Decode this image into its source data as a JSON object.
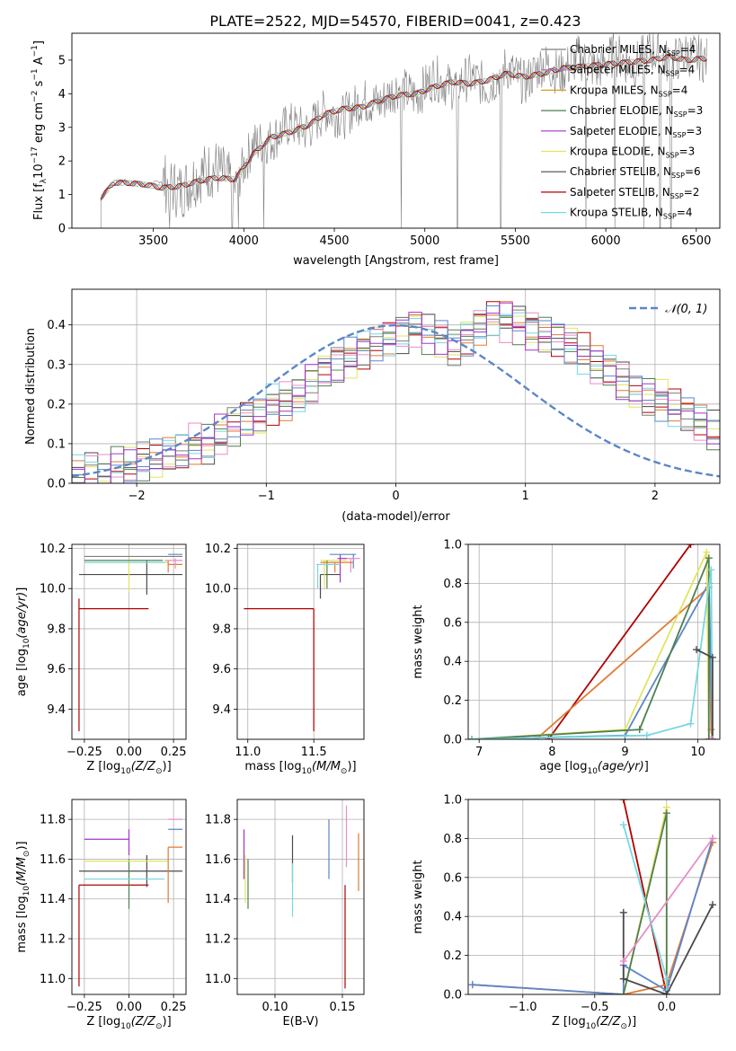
{
  "figure": {
    "title": "PLATE=2522, MJD=54570, FIBERID=0041, z=0.423"
  },
  "colors": {
    "ch_miles": "#7f7f7f",
    "sa_miles": "#9b7bc4",
    "kr_miles": "#d4a017",
    "ch_elodie": "#4f7f4f",
    "sa_elodie": "#a333c8",
    "kr_elodie": "#e3e360",
    "ch_stelib": "#4a4a4a",
    "sa_stelib": "#b00000",
    "kr_stelib": "#77d8e0",
    "orange": "#e07a33",
    "blue": "#5b86c9",
    "pink": "#e98cc6",
    "lime": "#c3d85e",
    "green": "#4f8f5f"
  },
  "chart_data": [
    {
      "id": "spectrum",
      "type": "line",
      "title": "PLATE=2522, MJD=54570, FIBERID=0041, z=0.423",
      "xlabel": "wavelength [Angstrom, rest frame]",
      "ylabel": "Flux [f",
      "xlim": [
        3050,
        6630
      ],
      "ylim": [
        0,
        5.8
      ],
      "xticks": [
        3500,
        4000,
        4500,
        5000,
        5500,
        6000,
        6500
      ],
      "yticks": [
        0,
        1,
        2,
        3,
        4,
        5
      ],
      "grid": false,
      "legend_position": "top-right",
      "legend": [
        {
          "label": "Chabrier MILES, N",
          "n": "4",
          "color_key": "ch_miles"
        },
        {
          "label": "Salpeter MILES, N",
          "n": "4",
          "color_key": "sa_miles"
        },
        {
          "label": "Kroupa MILES, N",
          "n": "4",
          "color_key": "kr_miles"
        },
        {
          "label": "Chabrier ELODIE, N",
          "n": "3",
          "color_key": "ch_elodie"
        },
        {
          "label": "Salpeter ELODIE, N",
          "n": "3",
          "color_key": "sa_elodie"
        },
        {
          "label": "Kroupa ELODIE, N",
          "n": "3",
          "color_key": "kr_elodie"
        },
        {
          "label": "Chabrier STELIB, N",
          "n": "6",
          "color_key": "ch_stelib"
        },
        {
          "label": "Salpeter STELIB, N",
          "n": "2",
          "color_key": "sa_stelib"
        },
        {
          "label": "Kroupa STELIB, N",
          "n": "4",
          "color_key": "kr_stelib"
        }
      ],
      "legend_suffix": "SSP",
      "continuum": {
        "x": [
          3210,
          3280,
          3350,
          3450,
          3550,
          3650,
          3750,
          3850,
          3950,
          4050,
          4150,
          4250,
          4350,
          4450,
          4550,
          4650,
          4750,
          4850,
          4950,
          5050,
          5150,
          5250,
          5350,
          5450,
          5550,
          5650,
          5750,
          5850,
          5950,
          6050,
          6150,
          6250,
          6350,
          6450,
          6550
        ],
        "y": [
          0.9,
          1.35,
          1.35,
          1.3,
          1.2,
          1.25,
          1.4,
          1.5,
          1.45,
          2.2,
          2.7,
          2.85,
          3.05,
          3.4,
          3.55,
          3.6,
          3.8,
          3.95,
          4.0,
          4.2,
          4.35,
          4.3,
          4.4,
          4.6,
          4.5,
          4.6,
          4.75,
          4.8,
          4.85,
          4.9,
          4.95,
          5.0,
          5.1,
          5.0,
          5.05
        ]
      },
      "observed": {
        "x": [
          3210,
          3280,
          3350,
          3450,
          3550,
          3650,
          3750,
          3850,
          3950,
          4050,
          4150,
          4250,
          4350,
          4450,
          4550,
          4650,
          4750,
          4850,
          4950,
          5050,
          5150,
          5250,
          5350,
          5450,
          5550,
          5650,
          5750,
          5850,
          5950,
          6050,
          6150,
          6250,
          6350,
          6450,
          6550
        ],
        "y": [
          0.9,
          1.4,
          1.4,
          1.3,
          1.4,
          1.1,
          1.6,
          1.8,
          1.2,
          2.5,
          2.6,
          3.1,
          2.9,
          3.5,
          3.3,
          3.8,
          3.7,
          4.2,
          3.9,
          4.5,
          4.2,
          4.5,
          4.2,
          4.8,
          4.3,
          4.9,
          4.6,
          5.1,
          4.7,
          5.2,
          4.8,
          5.3,
          4.9,
          5.2,
          5.0
        ],
        "dips": [
          3590,
          3935,
          3970,
          4110,
          4870,
          5180,
          5420,
          5890,
          6050,
          6210,
          6300,
          6360
        ]
      }
    },
    {
      "id": "residuals",
      "type": "line",
      "xlabel": "(data-model)/error",
      "ylabel": "Normed distribution",
      "xlim": [
        -2.5,
        2.5
      ],
      "ylim": [
        0,
        0.49
      ],
      "xticks": [
        -2,
        -1,
        0,
        1,
        2
      ],
      "yticks": [
        0.0,
        0.1,
        0.2,
        0.3,
        0.4
      ],
      "grid": true,
      "legend_position": "top-right",
      "legend_label": "𝒩(0, 1)",
      "gaussian": {
        "mu": 0,
        "sigma": 1
      },
      "bin_edges_start": -2.5,
      "bin_width": 0.1,
      "hist_base": [
        0.02,
        0.03,
        0.03,
        0.04,
        0.04,
        0.05,
        0.06,
        0.07,
        0.08,
        0.1,
        0.1,
        0.12,
        0.14,
        0.16,
        0.17,
        0.2,
        0.21,
        0.23,
        0.25,
        0.28,
        0.3,
        0.32,
        0.34,
        0.36,
        0.37,
        0.38,
        0.39,
        0.38,
        0.37,
        0.35,
        0.37,
        0.4,
        0.42,
        0.41,
        0.4,
        0.39,
        0.38,
        0.37,
        0.35,
        0.33,
        0.3,
        0.28,
        0.26,
        0.24,
        0.22,
        0.21,
        0.19,
        0.17,
        0.15,
        0.13
      ]
    },
    {
      "id": "age-vs-Z",
      "type": "scatter",
      "xlabel": "Z [log",
      "ylabel": "age  [log",
      "xlim": [
        -0.32,
        0.32
      ],
      "ylim": [
        9.25,
        10.22
      ],
      "xticks": [
        -0.25,
        0.0,
        0.25
      ],
      "xtick_labels": [
        "−0.25",
        "0.00",
        "0.25"
      ],
      "yticks": [
        9.4,
        9.6,
        9.8,
        10.0,
        10.2
      ],
      "grid": true,
      "points": [
        {
          "x": -0.28,
          "y": 9.9,
          "xl": -0.28,
          "xh": 0.11,
          "yl": 9.29,
          "yh": 9.95,
          "c": "sa_stelib"
        },
        {
          "x": -0.28,
          "y": 10.07,
          "xl": -0.28,
          "xh": 0.3,
          "yl": 10.07,
          "yh": 10.07,
          "c": "ch_stelib"
        },
        {
          "x": 0.1,
          "y": 10.07,
          "xl": 0.1,
          "xh": 0.1,
          "yl": 9.97,
          "yh": 10.14,
          "c": "ch_stelib"
        },
        {
          "x": 0.0,
          "y": 10.13,
          "xl": -0.25,
          "xh": 0.22,
          "yl": 9.98,
          "yh": 10.15,
          "c": "kr_elodie"
        },
        {
          "x": -0.25,
          "y": 10.14,
          "xl": -0.25,
          "xh": 0.19,
          "yl": 10.14,
          "yh": 10.14,
          "c": "ch_elodie"
        },
        {
          "x": -0.25,
          "y": 10.16,
          "xl": -0.25,
          "xh": 0.3,
          "yl": 10.16,
          "yh": 10.16,
          "c": "ch_miles"
        },
        {
          "x": 0.22,
          "y": 10.17,
          "xl": 0.22,
          "xh": 0.3,
          "yl": 10.17,
          "yh": 10.17,
          "c": "blue"
        },
        {
          "x": 0.22,
          "y": 10.12,
          "xl": 0.22,
          "xh": 0.3,
          "yl": 10.08,
          "yh": 10.14,
          "c": "orange"
        },
        {
          "x": 0.26,
          "y": 10.14,
          "xl": 0.2,
          "xh": 0.3,
          "yl": 10.1,
          "yh": 10.15,
          "c": "pink"
        },
        {
          "x": -0.25,
          "y": 10.13,
          "xl": -0.25,
          "xh": 0.2,
          "yl": 10.13,
          "yh": 10.13,
          "c": "kr_stelib"
        }
      ]
    },
    {
      "id": "age-vs-mass",
      "type": "scatter",
      "xlabel": "mass [log",
      "xlim": [
        10.92,
        11.88
      ],
      "ylim": [
        9.25,
        10.22
      ],
      "xticks": [
        11.0,
        11.5
      ],
      "xtick_labels": [
        "11.0",
        "11.5"
      ],
      "yticks": [
        9.4,
        9.6,
        9.8,
        10.0,
        10.2
      ],
      "grid": true,
      "points": [
        {
          "x": 11.5,
          "y": 9.9,
          "xl": 10.97,
          "xh": 11.5,
          "yl": 9.29,
          "yh": 9.9,
          "c": "sa_stelib"
        },
        {
          "x": 11.55,
          "y": 10.07,
          "xl": 11.55,
          "xh": 11.7,
          "yl": 9.95,
          "yh": 10.07,
          "c": "ch_stelib"
        },
        {
          "x": 11.58,
          "y": 10.14,
          "xl": 11.55,
          "xh": 11.75,
          "yl": 10.0,
          "yh": 10.14,
          "c": "kr_elodie"
        },
        {
          "x": 11.6,
          "y": 10.14,
          "xl": 11.6,
          "xh": 11.6,
          "yl": 10.0,
          "yh": 10.14,
          "c": "ch_elodie"
        },
        {
          "x": 11.7,
          "y": 10.15,
          "xl": 11.68,
          "xh": 11.75,
          "yl": 10.03,
          "yh": 10.17,
          "c": "sa_elodie"
        },
        {
          "x": 11.8,
          "y": 10.17,
          "xl": 11.62,
          "xh": 11.82,
          "yl": 10.1,
          "yh": 10.17,
          "c": "blue"
        },
        {
          "x": 11.78,
          "y": 10.15,
          "xl": 11.75,
          "xh": 11.85,
          "yl": 10.08,
          "yh": 10.15,
          "c": "pink"
        },
        {
          "x": 11.66,
          "y": 10.13,
          "xl": 11.55,
          "xh": 11.8,
          "yl": 10.08,
          "yh": 10.13,
          "c": "orange"
        },
        {
          "x": 11.53,
          "y": 10.12,
          "xl": 11.52,
          "xh": 11.7,
          "yl": 10.0,
          "yh": 10.12,
          "c": "kr_stelib"
        }
      ]
    },
    {
      "id": "massweight-vs-age",
      "type": "line",
      "xlabel": "age  [log",
      "ylabel": "mass weight",
      "xlim": [
        6.85,
        10.3
      ],
      "ylim": [
        0,
        1.0
      ],
      "xticks": [
        7,
        8,
        9,
        10
      ],
      "yticks": [
        0.0,
        0.2,
        0.4,
        0.6,
        0.8,
        1.0
      ],
      "grid": true,
      "series": [
        {
          "c": "sa_stelib",
          "x": [
            7.95,
            9.9
          ],
          "y": [
            0.0,
            1.0
          ]
        },
        {
          "c": "orange",
          "x": [
            7.78,
            10.15,
            10.18,
            10.2
          ],
          "y": [
            0.0,
            0.78,
            0.05,
            0.0
          ]
        },
        {
          "c": "blue",
          "x": [
            6.9,
            9.0,
            10.15,
            10.2
          ],
          "y": [
            0.0,
            0.02,
            0.8,
            0.0
          ]
        },
        {
          "c": "kr_elodie",
          "x": [
            6.9,
            9.0,
            10.12,
            10.15
          ],
          "y": [
            0.0,
            0.05,
            0.96,
            0.0
          ]
        },
        {
          "c": "ch_elodie",
          "x": [
            6.9,
            9.2,
            10.15,
            10.15
          ],
          "y": [
            0.0,
            0.05,
            0.93,
            0.0
          ]
        },
        {
          "c": "kr_stelib",
          "x": [
            6.9,
            9.3,
            9.9,
            10.18,
            10.2
          ],
          "y": [
            0.0,
            0.02,
            0.08,
            0.87,
            0.0
          ]
        },
        {
          "c": "ch_stelib",
          "x": [
            9.98,
            10.2,
            10.2
          ],
          "y": [
            0.46,
            0.42,
            0.0
          ]
        },
        {
          "c": "pink",
          "x": [
            10.18,
            10.2
          ],
          "y": [
            0.0,
            0.0
          ]
        }
      ]
    },
    {
      "id": "mass-vs-Z",
      "type": "scatter",
      "xlabel": "Z [log",
      "ylabel": "mass [log",
      "xlim": [
        -0.32,
        0.32
      ],
      "ylim": [
        10.92,
        11.9
      ],
      "xticks": [
        -0.25,
        0.0,
        0.25
      ],
      "xtick_labels": [
        "−0.25",
        "0.00",
        "0.25"
      ],
      "yticks": [
        11.0,
        11.2,
        11.4,
        11.6,
        11.8
      ],
      "grid": true,
      "points": [
        {
          "x": -0.28,
          "y": 11.47,
          "xl": -0.28,
          "xh": 0.11,
          "yl": 10.96,
          "yh": 11.47,
          "c": "sa_stelib"
        },
        {
          "x": -0.28,
          "y": 11.54,
          "xl": -0.28,
          "xh": 0.3,
          "yl": 11.54,
          "yh": 11.54,
          "c": "ch_stelib"
        },
        {
          "x": 0.1,
          "y": 11.54,
          "xl": 0.1,
          "xh": 0.1,
          "yl": 11.46,
          "yh": 11.62,
          "c": "ch_stelib"
        },
        {
          "x": 0.0,
          "y": 11.57,
          "xl": 0.0,
          "xh": 0.0,
          "yl": 11.35,
          "yh": 11.6,
          "c": "ch_elodie"
        },
        {
          "x": -0.25,
          "y": 11.59,
          "xl": -0.25,
          "xh": 0.22,
          "yl": 11.59,
          "yh": 11.59,
          "c": "kr_elodie"
        },
        {
          "x": -0.25,
          "y": 11.7,
          "xl": -0.25,
          "xh": 0.0,
          "yl": 11.7,
          "yh": 11.7,
          "c": "sa_elodie"
        },
        {
          "x": 0.0,
          "y": 11.7,
          "xl": 0.0,
          "xh": 0.0,
          "yl": 11.62,
          "yh": 11.75,
          "c": "sa_elodie"
        },
        {
          "x": 0.22,
          "y": 11.75,
          "xl": 0.22,
          "xh": 0.3,
          "yl": 11.75,
          "yh": 11.75,
          "c": "blue"
        },
        {
          "x": 0.22,
          "y": 11.66,
          "xl": 0.22,
          "xh": 0.3,
          "yl": 11.38,
          "yh": 11.66,
          "c": "orange"
        },
        {
          "x": 0.22,
          "y": 11.8,
          "xl": 0.22,
          "xh": 0.3,
          "yl": 11.8,
          "yh": 11.8,
          "c": "pink"
        },
        {
          "x": -0.25,
          "y": 11.5,
          "xl": -0.25,
          "xh": 0.2,
          "yl": 11.5,
          "yh": 11.5,
          "c": "kr_stelib"
        }
      ]
    },
    {
      "id": "mass-vs-ebv",
      "type": "scatter",
      "xlabel": "E(B-V)",
      "xlim": [
        0.072,
        0.166
      ],
      "ylim": [
        10.92,
        11.9
      ],
      "xticks": [
        0.1,
        0.15
      ],
      "xtick_labels": [
        "0.10",
        "0.15"
      ],
      "yticks": [
        11.0,
        11.2,
        11.4,
        11.6,
        11.8
      ],
      "grid": true,
      "points": [
        {
          "x": 0.077,
          "y": 11.6,
          "xl": 0.077,
          "xh": 0.077,
          "yl": 11.5,
          "yh": 11.75,
          "c": "sa_elodie"
        },
        {
          "x": 0.078,
          "y": 11.5,
          "xl": 0.078,
          "xh": 0.078,
          "yl": 11.38,
          "yh": 11.62,
          "c": "kr_elodie"
        },
        {
          "x": 0.08,
          "y": 11.5,
          "xl": 0.08,
          "xh": 0.08,
          "yl": 11.35,
          "yh": 11.6,
          "c": "ch_elodie"
        },
        {
          "x": 0.113,
          "y": 11.6,
          "xl": 0.113,
          "xh": 0.113,
          "yl": 11.48,
          "yh": 11.72,
          "c": "ch_stelib"
        },
        {
          "x": 0.113,
          "y": 11.45,
          "xl": 0.113,
          "xh": 0.113,
          "yl": 11.31,
          "yh": 11.58,
          "c": "kr_stelib"
        },
        {
          "x": 0.14,
          "y": 11.65,
          "xl": 0.14,
          "xh": 0.14,
          "yl": 11.5,
          "yh": 11.8,
          "c": "blue"
        },
        {
          "x": 0.152,
          "y": 11.2,
          "xl": 0.152,
          "xh": 0.152,
          "yl": 10.95,
          "yh": 11.47,
          "c": "sa_stelib"
        },
        {
          "x": 0.153,
          "y": 11.7,
          "xl": 0.153,
          "xh": 0.153,
          "yl": 11.56,
          "yh": 11.87,
          "c": "pink"
        },
        {
          "x": 0.162,
          "y": 11.6,
          "xl": 0.162,
          "xh": 0.162,
          "yl": 11.44,
          "yh": 11.73,
          "c": "orange"
        }
      ]
    },
    {
      "id": "massweight-vs-Z",
      "type": "line",
      "xlabel": "Z [log",
      "ylabel": "mass weight",
      "xlim": [
        -1.38,
        0.37
      ],
      "ylim": [
        0,
        1.0
      ],
      "xticks": [
        -1.0,
        -0.5,
        0.0
      ],
      "xtick_labels": [
        "−1.0",
        "−0.5",
        "0.0"
      ],
      "yticks": [
        0.0,
        0.2,
        0.4,
        0.6,
        0.8,
        1.0
      ],
      "grid": true,
      "series": [
        {
          "c": "sa_stelib",
          "x": [
            -0.3,
            0.0
          ],
          "y": [
            1.0,
            0.0
          ]
        },
        {
          "c": "orange",
          "x": [
            -1.35,
            -0.3,
            0.0,
            0.32
          ],
          "y": [
            0.05,
            0.0,
            0.05,
            0.78
          ]
        },
        {
          "c": "blue",
          "x": [
            -1.35,
            -0.3,
            -0.3,
            0.0,
            0.32
          ],
          "y": [
            0.05,
            0.0,
            0.15,
            0.02,
            0.8
          ]
        },
        {
          "c": "kr_elodie",
          "x": [
            -0.3,
            0.0,
            0.0
          ],
          "y": [
            0.0,
            0.96,
            0.0
          ]
        },
        {
          "c": "ch_elodie",
          "x": [
            -0.3,
            0.0,
            0.0
          ],
          "y": [
            0.0,
            0.93,
            0.0
          ]
        },
        {
          "c": "kr_stelib",
          "x": [
            -0.3,
            0.0,
            0.0
          ],
          "y": [
            0.87,
            0.08,
            0.0
          ]
        },
        {
          "c": "ch_stelib",
          "x": [
            -0.3,
            -0.3,
            0.0,
            0.32
          ],
          "y": [
            0.42,
            0.08,
            0.0,
            0.46
          ]
        },
        {
          "c": "pink",
          "x": [
            -0.3,
            0.32
          ],
          "y": [
            0.17,
            0.8
          ]
        }
      ]
    }
  ]
}
